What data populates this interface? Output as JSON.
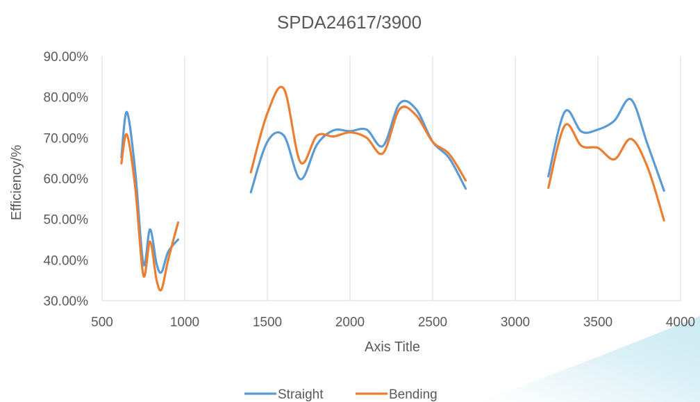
{
  "chart_data": {
    "type": "line",
    "title": "SPDA24617/3900",
    "xlabel": "Axis Title",
    "ylabel": "Efficiency/%",
    "xlim": [
      500,
      4000
    ],
    "ylim": [
      0.3,
      0.9
    ],
    "x_ticks": [
      500,
      1000,
      1500,
      2000,
      2500,
      3000,
      3500,
      4000
    ],
    "x_tick_labels": [
      "500",
      "1000",
      "1500",
      "2000",
      "2500",
      "3000",
      "3500",
      "4000"
    ],
    "y_ticks": [
      0.3,
      0.4,
      0.5,
      0.6,
      0.7,
      0.8,
      0.9
    ],
    "y_tick_labels": [
      "30.00%",
      "40.00%",
      "50.00%",
      "60.00%",
      "70.00%",
      "80.00%",
      "90.00%"
    ],
    "grid": "vertical",
    "legend_position": "bottom",
    "smooth": true,
    "series": [
      {
        "name": "Straight",
        "color": "#5B9BD5",
        "segments": [
          [
            [
              617,
              0.652
            ],
            [
              650,
              0.763
            ],
            [
              700,
              0.62
            ],
            [
              750,
              0.39
            ],
            [
              790,
              0.475
            ],
            [
              830,
              0.39
            ],
            [
              860,
              0.37
            ],
            [
              900,
              0.42
            ],
            [
              960,
              0.45
            ]
          ],
          [
            [
              1400,
              0.566
            ],
            [
              1500,
              0.69
            ],
            [
              1600,
              0.705
            ],
            [
              1700,
              0.598
            ],
            [
              1800,
              0.683
            ],
            [
              1900,
              0.718
            ],
            [
              2000,
              0.716
            ],
            [
              2100,
              0.72
            ],
            [
              2200,
              0.68
            ],
            [
              2300,
              0.784
            ],
            [
              2400,
              0.77
            ],
            [
              2500,
              0.69
            ],
            [
              2600,
              0.65
            ],
            [
              2700,
              0.575
            ]
          ],
          [
            [
              3200,
              0.605
            ],
            [
              3300,
              0.764
            ],
            [
              3400,
              0.715
            ],
            [
              3500,
              0.72
            ],
            [
              3600,
              0.742
            ],
            [
              3700,
              0.794
            ],
            [
              3800,
              0.684
            ],
            [
              3900,
              0.57
            ]
          ]
        ]
      },
      {
        "name": "Bending",
        "color": "#ED7D31",
        "segments": [
          [
            [
              617,
              0.637
            ],
            [
              650,
              0.708
            ],
            [
              700,
              0.58
            ],
            [
              750,
              0.362
            ],
            [
              790,
              0.445
            ],
            [
              830,
              0.35
            ],
            [
              860,
              0.328
            ],
            [
              900,
              0.4
            ],
            [
              960,
              0.492
            ]
          ],
          [
            [
              1400,
              0.615
            ],
            [
              1500,
              0.76
            ],
            [
              1600,
              0.82
            ],
            [
              1700,
              0.64
            ],
            [
              1800,
              0.705
            ],
            [
              1900,
              0.703
            ],
            [
              2000,
              0.713
            ],
            [
              2100,
              0.7
            ],
            [
              2200,
              0.662
            ],
            [
              2300,
              0.77
            ],
            [
              2400,
              0.755
            ],
            [
              2500,
              0.69
            ],
            [
              2600,
              0.66
            ],
            [
              2700,
              0.595
            ]
          ],
          [
            [
              3200,
              0.577
            ],
            [
              3300,
              0.73
            ],
            [
              3400,
              0.68
            ],
            [
              3500,
              0.675
            ],
            [
              3600,
              0.647
            ],
            [
              3700,
              0.697
            ],
            [
              3800,
              0.628
            ],
            [
              3900,
              0.497
            ]
          ]
        ]
      }
    ]
  }
}
